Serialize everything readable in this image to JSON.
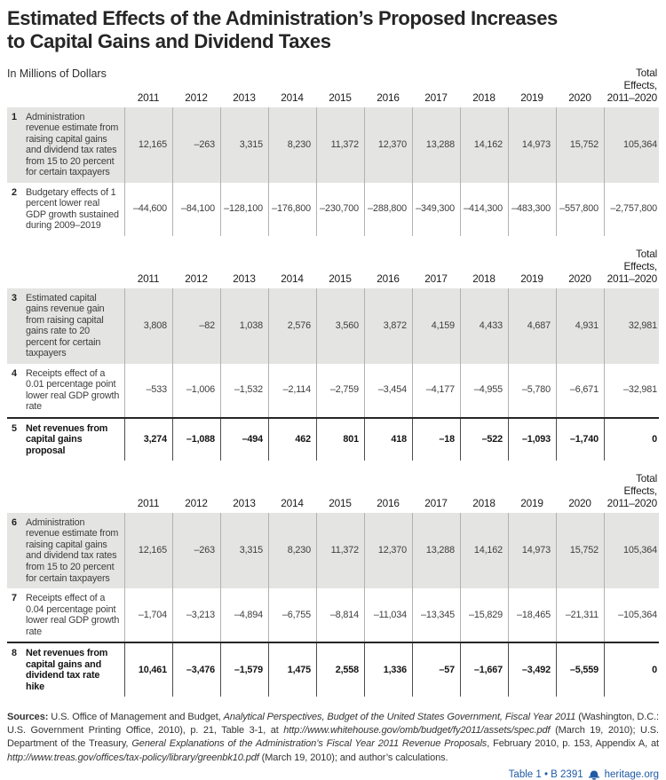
{
  "title": "Estimated Effects of the Administration’s Proposed Increases\nto Capital Gains and Dividend Taxes",
  "subtitle": "In Millions of Dollars",
  "colors": {
    "accent_blue": "#1f5ba5",
    "row_shade": "#e4e4e2",
    "grid_line": "#b2b2b0",
    "text_dark": "#262626"
  },
  "year_columns": [
    "2011",
    "2012",
    "2013",
    "2014",
    "2015",
    "2016",
    "2017",
    "2018",
    "2019",
    "2020"
  ],
  "total_column_label": "Total\nEffects,\n2011–2020",
  "tables": [
    {
      "rows": [
        {
          "num": "1",
          "label": "Administration revenue estimate from raising capital gains and dividend tax rates from 15 to 20 percent for certain taxpayers",
          "values": [
            "12,165",
            "–263",
            "3,315",
            "8,230",
            "11,372",
            "12,370",
            "13,288",
            "14,162",
            "14,973",
            "15,752",
            "105,364"
          ],
          "shaded": true,
          "bold": false
        },
        {
          "num": "2",
          "label": "Budgetary effects of 1 percent lower real GDP growth sustained during 2009–2019",
          "values": [
            "–44,600",
            "–84,100",
            "–128,100",
            "–176,800",
            "–230,700",
            "–288,800",
            "–349,300",
            "–414,300",
            "–483,300",
            "–557,800",
            "–2,757,800"
          ],
          "shaded": false,
          "bold": false
        }
      ]
    },
    {
      "rows": [
        {
          "num": "3",
          "label": "Estimated capital gains revenue gain from raising capital gains rate to 20 percent for certain taxpayers",
          "values": [
            "3,808",
            "–82",
            "1,038",
            "2,576",
            "3,560",
            "3,872",
            "4,159",
            "4,433",
            "4,687",
            "4,931",
            "32,981"
          ],
          "shaded": true,
          "bold": false
        },
        {
          "num": "4",
          "label": "Receipts effect of a 0.01 percentage point lower real GDP growth rate",
          "values": [
            "–533",
            "–1,006",
            "–1,532",
            "–2,114",
            "–2,759",
            "–3,454",
            "–4,177",
            "–4,955",
            "–5,780",
            "–6,671",
            "–32,981"
          ],
          "shaded": false,
          "bold": false
        },
        {
          "num": "5",
          "label": "Net revenues from capital gains proposal",
          "values": [
            "3,274",
            "–1,088",
            "–494",
            "462",
            "801",
            "418",
            "–18",
            "–522",
            "–1,093",
            "–1,740",
            "0"
          ],
          "shaded": false,
          "bold": true
        }
      ]
    },
    {
      "rows": [
        {
          "num": "6",
          "label": "Administration revenue estimate from raising capital gains and dividend tax rates from 15 to 20 percent for certain taxpayers",
          "values": [
            "12,165",
            "–263",
            "3,315",
            "8,230",
            "11,372",
            "12,370",
            "13,288",
            "14,162",
            "14,973",
            "15,752",
            "105,364"
          ],
          "shaded": true,
          "bold": false
        },
        {
          "num": "7",
          "label": "Receipts effect of a 0.04 percentage point lower real GDP growth rate",
          "values": [
            "–1,704",
            "–3,213",
            "–4,894",
            "–6,755",
            "–8,814",
            "–11,034",
            "–13,345",
            "–15,829",
            "–18,465",
            "–21,311",
            "–105,364"
          ],
          "shaded": false,
          "bold": false
        },
        {
          "num": "8",
          "label": "Net revenues from capital gains and dividend tax rate hike",
          "values": [
            "10,461",
            "–3,476",
            "–1,579",
            "1,475",
            "2,558",
            "1,336",
            "–57",
            "–1,667",
            "–3,492",
            "–5,559",
            "0"
          ],
          "shaded": false,
          "bold": true
        }
      ]
    }
  ],
  "sources": {
    "segments": [
      {
        "text": "Sources: ",
        "style": "bold"
      },
      {
        "text": "U.S. Office of Management and Budget, ",
        "style": "plain"
      },
      {
        "text": "Analytical Perspectives, Budget of the United States Government, Fiscal Year 2011",
        "style": "italic"
      },
      {
        "text": " (Washington, D.C.: U.S. Government Printing Office, 2010), p. 21, Table 3-1, at ",
        "style": "plain"
      },
      {
        "text": "http://www.whitehouse.gov/omb/budget/fy2011/assets/spec.pdf",
        "style": "italic"
      },
      {
        "text": " (March 19, 2010); U.S. Department of the Treasury, ",
        "style": "plain"
      },
      {
        "text": "General Explanations of the Administration’s Fiscal Year 2011 Revenue Proposals",
        "style": "italic"
      },
      {
        "text": ", February 2010, p. 153, Appendix A, at ",
        "style": "plain"
      },
      {
        "text": "http://www.treas.gov/offices/tax-policy/library/greenbk10.pdf",
        "style": "italic"
      },
      {
        "text": " (March 19, 2010); and author’s calculations.",
        "style": "plain"
      }
    ]
  },
  "footer": {
    "table_ref": "Table 1 • B 2391",
    "icon": "liberty-bell-icon",
    "site": "heritage.org"
  }
}
